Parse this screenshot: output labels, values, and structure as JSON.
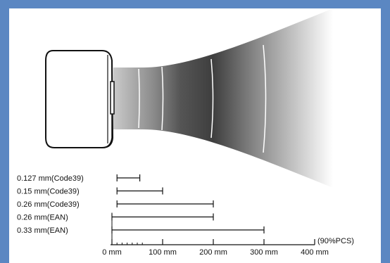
{
  "diagram": {
    "resolutions": [
      {
        "label": "0.127 mm(Code39)",
        "range_mm": [
          10,
          55
        ]
      },
      {
        "label": "0.15 mm(Code39)",
        "range_mm": [
          10,
          100
        ]
      },
      {
        "label": "0.26 mm(Code39)",
        "range_mm": [
          10,
          200
        ]
      },
      {
        "label": "0.26 mm(EAN)",
        "range_mm": [
          0,
          200
        ]
      },
      {
        "label": "0.33 mm(EAN)",
        "range_mm": [
          0,
          300
        ]
      }
    ],
    "axis": {
      "ticks": [
        "0 mm",
        "100 mm",
        "200 mm",
        "300 mm",
        "400 mm"
      ],
      "tick_values": [
        0,
        100,
        200,
        300,
        400
      ],
      "note": "(90%PCS)"
    }
  }
}
